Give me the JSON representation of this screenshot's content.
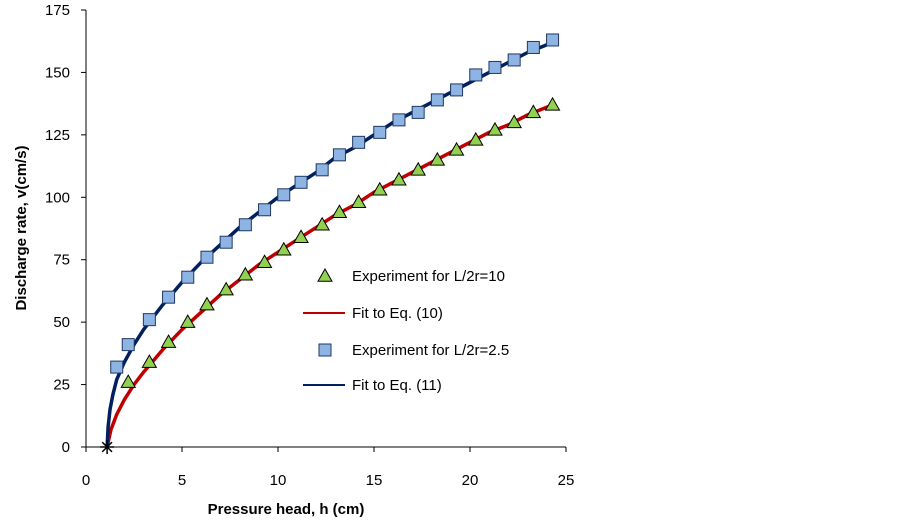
{
  "chart_data": {
    "type": "scatter",
    "title": "",
    "xlabel": "Pressure head, h  (cm)",
    "ylabel": "Discharge rate, v(cm/s)",
    "xlim": [
      0,
      25
    ],
    "ylim": [
      0,
      175
    ],
    "xticks": [
      "0",
      "5",
      "10",
      "15",
      "20",
      "25"
    ],
    "yticks": [
      "0",
      "25",
      "50",
      "75",
      "100",
      "125",
      "150",
      "175"
    ],
    "grid": false,
    "legend_position": "right",
    "origin_marker": {
      "x": 1.1,
      "y": 0,
      "symbol": "asterisk"
    },
    "series": [
      {
        "name": "Experiment for L/2r=10",
        "kind": "scatter",
        "marker": "triangle",
        "color": "#92d050",
        "points": [
          {
            "x": 2.2,
            "y": 26
          },
          {
            "x": 3.3,
            "y": 34
          },
          {
            "x": 4.3,
            "y": 42
          },
          {
            "x": 5.3,
            "y": 50
          },
          {
            "x": 6.3,
            "y": 57
          },
          {
            "x": 7.3,
            "y": 63
          },
          {
            "x": 8.3,
            "y": 69
          },
          {
            "x": 9.3,
            "y": 74
          },
          {
            "x": 10.3,
            "y": 79
          },
          {
            "x": 11.2,
            "y": 84
          },
          {
            "x": 12.3,
            "y": 89
          },
          {
            "x": 13.2,
            "y": 94
          },
          {
            "x": 14.2,
            "y": 98
          },
          {
            "x": 15.3,
            "y": 103
          },
          {
            "x": 16.3,
            "y": 107
          },
          {
            "x": 17.3,
            "y": 111
          },
          {
            "x": 18.3,
            "y": 115
          },
          {
            "x": 19.3,
            "y": 119
          },
          {
            "x": 20.3,
            "y": 123
          },
          {
            "x": 21.3,
            "y": 127
          },
          {
            "x": 22.3,
            "y": 130
          },
          {
            "x": 23.3,
            "y": 134
          },
          {
            "x": 24.3,
            "y": 137
          }
        ]
      },
      {
        "name": "Fit to Eq. (10)",
        "kind": "line",
        "color": "#c00000",
        "points": [
          {
            "x": 1.1,
            "y": 0
          },
          {
            "x": 1.3,
            "y": 7
          },
          {
            "x": 1.6,
            "y": 13
          },
          {
            "x": 2,
            "y": 19
          },
          {
            "x": 2.5,
            "y": 25
          },
          {
            "x": 3,
            "y": 30
          },
          {
            "x": 4,
            "y": 39
          },
          {
            "x": 5,
            "y": 47
          },
          {
            "x": 6,
            "y": 54
          },
          {
            "x": 7,
            "y": 61
          },
          {
            "x": 8,
            "y": 67
          },
          {
            "x": 9,
            "y": 73
          },
          {
            "x": 10,
            "y": 78
          },
          {
            "x": 11,
            "y": 83
          },
          {
            "x": 12,
            "y": 88
          },
          {
            "x": 13,
            "y": 93
          },
          {
            "x": 14,
            "y": 97
          },
          {
            "x": 15,
            "y": 102
          },
          {
            "x": 16,
            "y": 106
          },
          {
            "x": 17,
            "y": 110
          },
          {
            "x": 18,
            "y": 114
          },
          {
            "x": 19,
            "y": 118
          },
          {
            "x": 20,
            "y": 122
          },
          {
            "x": 21,
            "y": 126
          },
          {
            "x": 22,
            "y": 129
          },
          {
            "x": 23,
            "y": 133
          },
          {
            "x": 24.3,
            "y": 137
          }
        ]
      },
      {
        "name": "Experiment for L/2r=2.5",
        "kind": "scatter",
        "marker": "square",
        "color": "#8db4e2",
        "points": [
          {
            "x": 1.6,
            "y": 32
          },
          {
            "x": 2.2,
            "y": 41
          },
          {
            "x": 3.3,
            "y": 51
          },
          {
            "x": 4.3,
            "y": 60
          },
          {
            "x": 5.3,
            "y": 68
          },
          {
            "x": 6.3,
            "y": 76
          },
          {
            "x": 7.3,
            "y": 82
          },
          {
            "x": 8.3,
            "y": 89
          },
          {
            "x": 9.3,
            "y": 95
          },
          {
            "x": 10.3,
            "y": 101
          },
          {
            "x": 11.2,
            "y": 106
          },
          {
            "x": 12.3,
            "y": 111
          },
          {
            "x": 13.2,
            "y": 117
          },
          {
            "x": 14.2,
            "y": 122
          },
          {
            "x": 15.3,
            "y": 126
          },
          {
            "x": 16.3,
            "y": 131
          },
          {
            "x": 17.3,
            "y": 134
          },
          {
            "x": 18.3,
            "y": 139
          },
          {
            "x": 19.3,
            "y": 143
          },
          {
            "x": 20.3,
            "y": 149
          },
          {
            "x": 21.3,
            "y": 152
          },
          {
            "x": 22.3,
            "y": 155
          },
          {
            "x": 23.3,
            "y": 160
          },
          {
            "x": 24.3,
            "y": 163
          }
        ]
      },
      {
        "name": "Fit to Eq. (11)",
        "kind": "line",
        "color": "#002060",
        "points": [
          {
            "x": 1.1,
            "y": 0
          },
          {
            "x": 1.15,
            "y": 8
          },
          {
            "x": 1.25,
            "y": 15
          },
          {
            "x": 1.4,
            "y": 21
          },
          {
            "x": 1.6,
            "y": 27
          },
          {
            "x": 2,
            "y": 34
          },
          {
            "x": 2.5,
            "y": 41
          },
          {
            "x": 3,
            "y": 47
          },
          {
            "x": 4,
            "y": 57
          },
          {
            "x": 5,
            "y": 66
          },
          {
            "x": 6,
            "y": 74
          },
          {
            "x": 7,
            "y": 81
          },
          {
            "x": 8,
            "y": 88
          },
          {
            "x": 9,
            "y": 94
          },
          {
            "x": 10,
            "y": 100
          },
          {
            "x": 11,
            "y": 105
          },
          {
            "x": 12,
            "y": 110
          },
          {
            "x": 13,
            "y": 116
          },
          {
            "x": 14,
            "y": 120
          },
          {
            "x": 15,
            "y": 125
          },
          {
            "x": 16,
            "y": 130
          },
          {
            "x": 17,
            "y": 134
          },
          {
            "x": 18,
            "y": 138
          },
          {
            "x": 19,
            "y": 142
          },
          {
            "x": 20,
            "y": 146
          },
          {
            "x": 21,
            "y": 150
          },
          {
            "x": 22,
            "y": 154
          },
          {
            "x": 23,
            "y": 158
          },
          {
            "x": 24.3,
            "y": 162
          }
        ]
      }
    ]
  }
}
